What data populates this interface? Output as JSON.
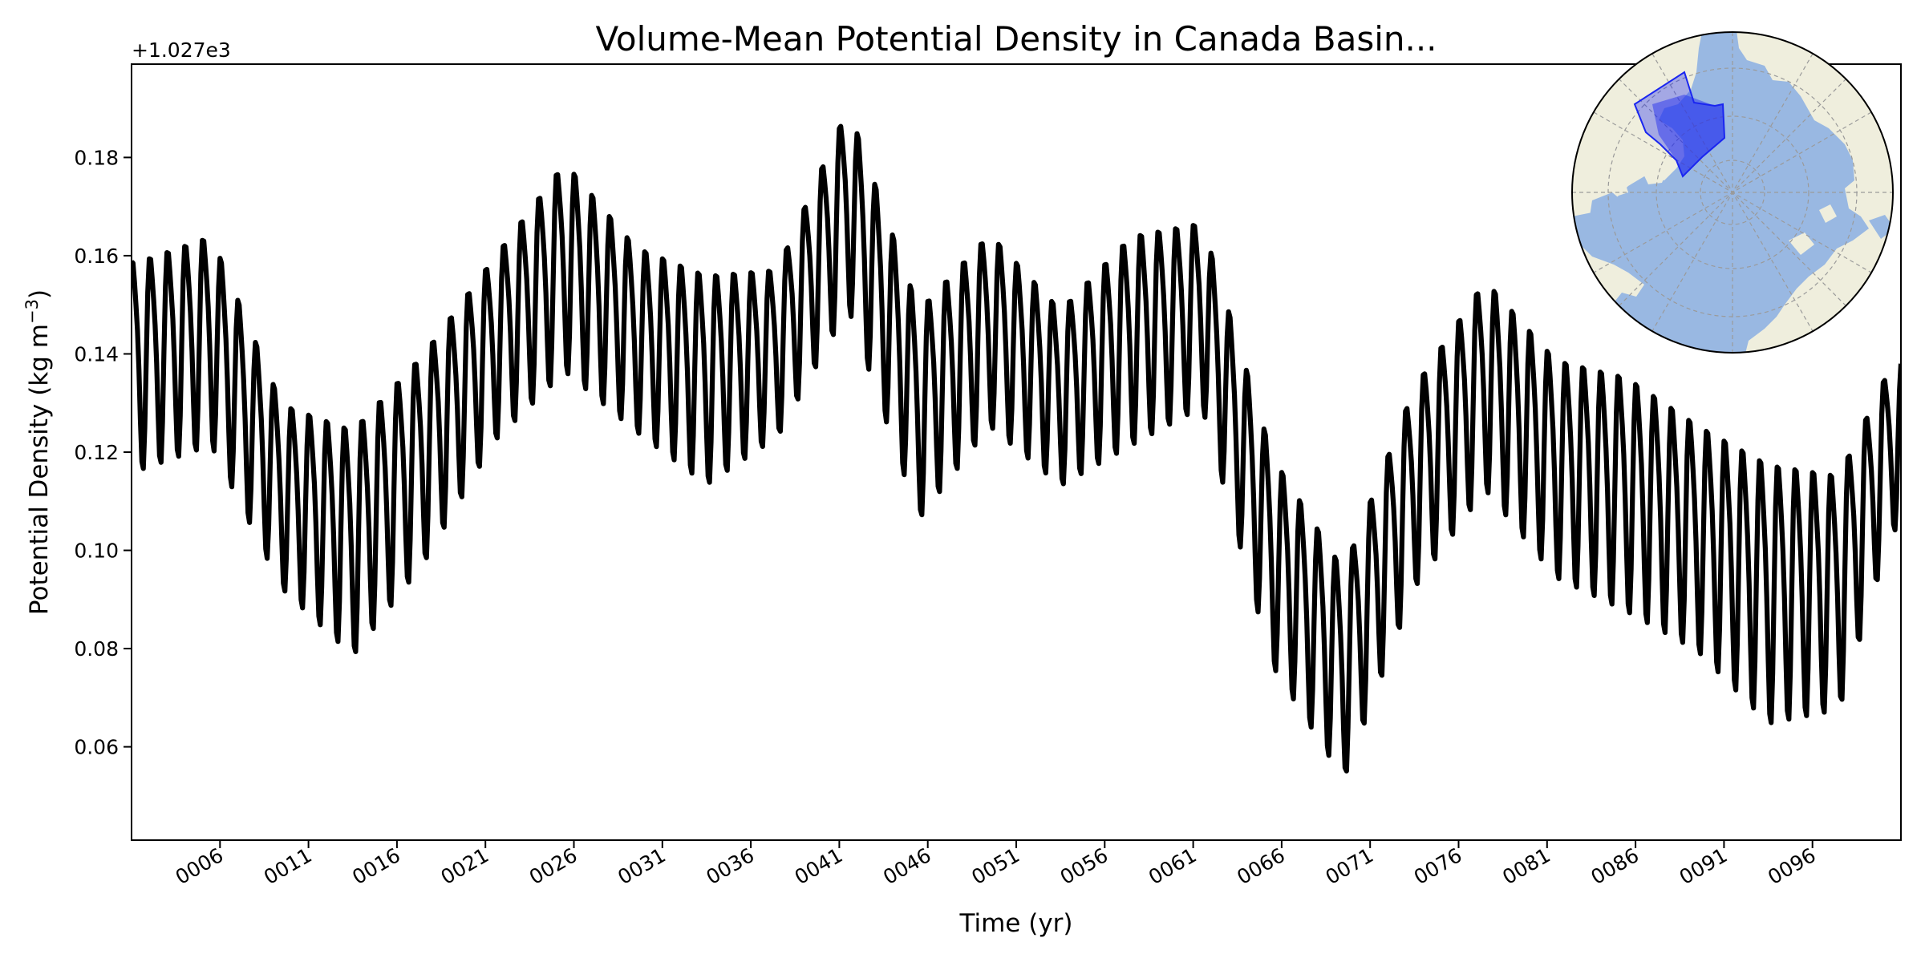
{
  "chart_data": {
    "type": "line",
    "title": "Volume-Mean Potential Density in Canada Basin...",
    "xlabel": "Time (yr)",
    "ylabel": "Potential Density (kg m",
    "ylabel_sup": "−3",
    "ylabel_close": ")",
    "offset_text": "+1.027e3",
    "y_offset": 1027.0,
    "xlim": [
      1.0,
      101.0
    ],
    "ylim": [
      0.041,
      0.199
    ],
    "x_ticks": [
      6,
      11,
      16,
      21,
      26,
      31,
      36,
      41,
      46,
      51,
      56,
      61,
      66,
      71,
      76,
      81,
      86,
      91,
      96
    ],
    "x_tick_labels": [
      "0006",
      "0011",
      "0016",
      "0021",
      "0026",
      "0031",
      "0036",
      "0041",
      "0046",
      "0051",
      "0056",
      "0061",
      "0066",
      "0071",
      "0076",
      "0081",
      "0086",
      "0091",
      "0096"
    ],
    "y_ticks": [
      0.06,
      0.08,
      0.1,
      0.12,
      0.14,
      0.16,
      0.18
    ],
    "y_tick_labels": [
      "0.06",
      "0.08",
      "0.10",
      "0.12",
      "0.14",
      "0.16",
      "0.18"
    ],
    "grid": false,
    "line_color": "#000000",
    "series": [
      {
        "values_note_resolution": "monthly",
        "annual_mean_x": [
          1.5,
          5.5,
          9.5,
          13.5,
          17.5,
          21.5,
          25.5,
          29.5,
          33.5,
          37.5,
          41.5,
          45.5,
          49.5,
          53.5,
          57.5,
          61.5,
          65.5,
          69.5,
          73.5,
          77.5,
          81.5,
          85.5,
          89.5,
          93.5,
          97.5,
          100.5
        ],
        "annual_mean_y": [
          0.14,
          0.145,
          0.113,
          0.104,
          0.121,
          0.143,
          0.16,
          0.145,
          0.137,
          0.142,
          0.172,
          0.13,
          0.147,
          0.133,
          0.145,
          0.15,
          0.1,
          0.077,
          0.115,
          0.136,
          0.119,
          0.114,
          0.105,
          0.094,
          0.094,
          0.123
        ],
        "seasonal_amplitude": [
          0.025,
          0.025,
          0.022,
          0.027,
          0.025,
          0.022,
          0.025,
          0.022,
          0.025,
          0.02,
          0.024,
          0.025,
          0.023,
          0.021,
          0.025,
          0.022,
          0.025,
          0.025,
          0.024,
          0.025,
          0.026,
          0.028,
          0.027,
          0.031,
          0.028,
          0.02
        ]
      }
    ]
  },
  "inset_map": {
    "projection": "north-polar-stereographic",
    "ocean_color": "#99b8e2",
    "land_color": "#efeedd",
    "region_color": "#1a26f0",
    "region_name": "Canada Basin"
  }
}
